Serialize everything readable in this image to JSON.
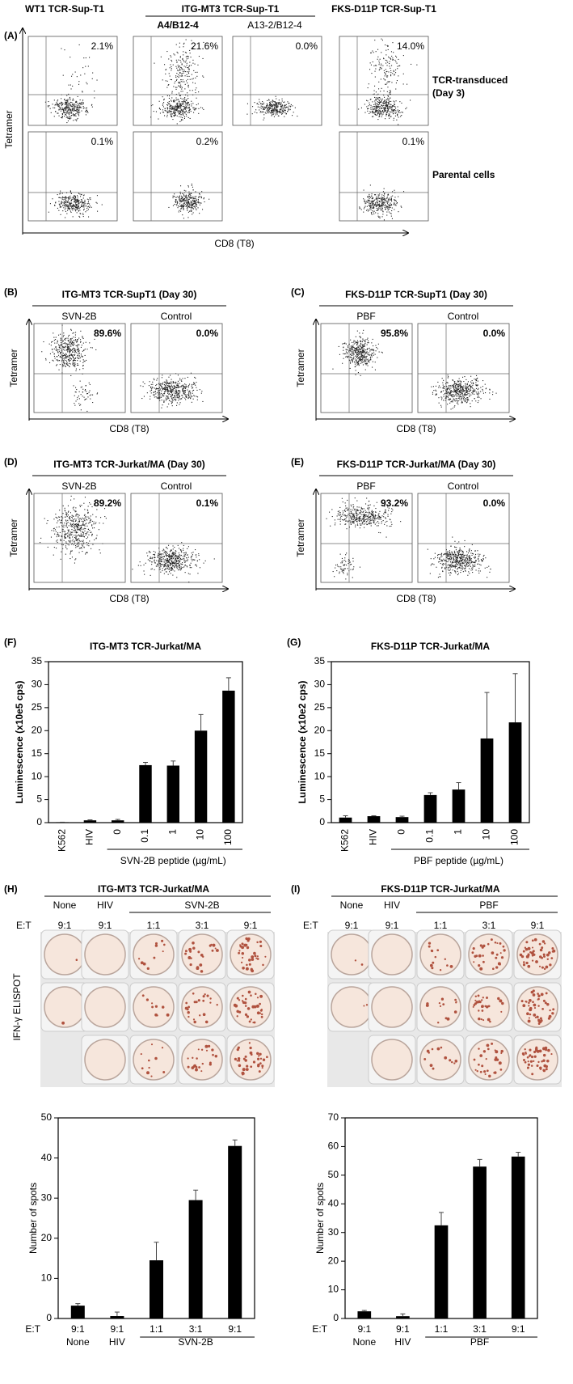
{
  "panel_a": {
    "label": "(A)",
    "col_titles": [
      "WT1 TCR-Sup-T1",
      "ITG-MT3 TCR-Sup-T1",
      "FKS-D11P TCR-Sup-T1"
    ],
    "sub_titles": [
      "A4/B12-4",
      "A13-2/B12-4"
    ],
    "row_labels": [
      [
        "TCR-transduced",
        "(Day 3)"
      ],
      [
        "Parental cells"
      ]
    ],
    "y_label": "Tetramer",
    "x_label": "CD8 (T8)",
    "rows": [
      [
        "2.1%",
        "21.6%",
        "0.0%",
        "14.0%"
      ],
      [
        "0.1%",
        "0.2%",
        "0.1%"
      ]
    ]
  },
  "flow_panels": [
    {
      "label": "(B)",
      "title": "ITG-MT3 TCR-SupT1 (Day 30)",
      "conditions": [
        "SVN-2B",
        "Control"
      ],
      "percents": [
        "89.6%",
        "0.0%"
      ],
      "y_label": "Tetramer",
      "x_label": "CD8 (T8)"
    },
    {
      "label": "(C)",
      "title": "FKS-D11P TCR-SupT1 (Day 30)",
      "conditions": [
        "PBF",
        "Control"
      ],
      "percents": [
        "95.8%",
        "0.0%"
      ],
      "y_label": "Tetramer",
      "x_label": "CD8 (T8)"
    },
    {
      "label": "(D)",
      "title": "ITG-MT3 TCR-Jurkat/MA (Day 30)",
      "conditions": [
        "SVN-2B",
        "Control"
      ],
      "percents": [
        "89.2%",
        "0.1%"
      ],
      "y_label": "Tetramer",
      "x_label": "CD8 (T8)"
    },
    {
      "label": "(E)",
      "title": "FKS-D11P TCR-Jurkat/MA (Day 30)",
      "conditions": [
        "PBF",
        "Control"
      ],
      "percents": [
        "93.2%",
        "0.0%"
      ],
      "y_label": "Tetramer",
      "x_label": "CD8 (T8)"
    }
  ],
  "elispot": [
    {
      "label": "(H)",
      "title": "ITG-MT3 TCR-Jurkat/MA",
      "groups": [
        "None",
        "HIV",
        "SVN-2B"
      ],
      "ratio_label": "E:T",
      "ratios": [
        "9:1",
        "9:1",
        "1:1",
        "3:1",
        "9:1"
      ],
      "side_label": "IFN-γ ELISPOT"
    },
    {
      "label": "(I)",
      "title": "FKS-D11P TCR-Jurkat/MA",
      "groups": [
        "None",
        "HIV",
        "PBF"
      ],
      "ratio_label": "E:T",
      "ratios": [
        "9:1",
        "9:1",
        "1:1",
        "3:1",
        "9:1"
      ]
    }
  ],
  "chart_data": [
    {
      "type": "bar",
      "label": "(F)",
      "title": "ITG-MT3 TCR-Jurkat/MA",
      "y_label": "Luminescence (x10e5 cps)",
      "categories": [
        "K562",
        "HIV",
        "0",
        "0.1",
        "1",
        "10",
        "100"
      ],
      "group_label": "SVN-2B peptide (µg/mL)",
      "values": [
        0.1,
        0.5,
        0.5,
        12.5,
        12.4,
        20,
        28.7
      ],
      "errors": [
        0,
        0.1,
        0.2,
        0.6,
        1,
        3.5,
        2.8
      ],
      "color": "#000000",
      "ylim": [
        0,
        35
      ],
      "yticks": [
        0,
        5,
        10,
        15,
        20,
        25,
        30,
        35
      ]
    },
    {
      "type": "bar",
      "label": "(G)",
      "title": "FKS-D11P TCR-Jurkat/MA",
      "y_label": "Luminescence (x10e2 cps)",
      "categories": [
        "K562",
        "HIV",
        "0",
        "0.1",
        "1",
        "10",
        "100"
      ],
      "group_label": "PBF peptide (µg/mL)",
      "values": [
        1.1,
        1.4,
        1.2,
        6,
        7.2,
        18.3,
        21.8
      ],
      "errors": [
        0.4,
        0.1,
        0.2,
        0.5,
        1.5,
        10,
        10.6
      ],
      "color": "#000000",
      "ylim": [
        0,
        35
      ],
      "yticks": [
        0,
        5,
        10,
        15,
        20,
        25,
        30,
        35
      ]
    },
    {
      "type": "bar",
      "y_label": "Number of spots",
      "x_prefix": "E:T",
      "categories": [
        "9:1",
        "9:1",
        "1:1",
        "3:1",
        "9:1"
      ],
      "groups": [
        "None",
        "HIV",
        "SVN-2B"
      ],
      "values": [
        3.2,
        0.6,
        14.5,
        29.5,
        43
      ],
      "errors": [
        0.5,
        1,
        4.5,
        2.5,
        1.5
      ],
      "color": "#000000",
      "ylim": [
        0,
        50
      ],
      "yticks": [
        0,
        10,
        20,
        30,
        40,
        50
      ]
    },
    {
      "type": "bar",
      "y_label": "Number of spots",
      "x_prefix": "E:T",
      "categories": [
        "9:1",
        "9:1",
        "1:1",
        "3:1",
        "9:1"
      ],
      "groups": [
        "None",
        "HIV",
        "PBF"
      ],
      "values": [
        2.5,
        0.8,
        32.5,
        53,
        56.5
      ],
      "errors": [
        0.3,
        0.8,
        4.5,
        2.5,
        1.5
      ],
      "color": "#000000",
      "ylim": [
        0,
        70
      ],
      "yticks": [
        0,
        10,
        20,
        30,
        40,
        50,
        60,
        70
      ]
    }
  ]
}
